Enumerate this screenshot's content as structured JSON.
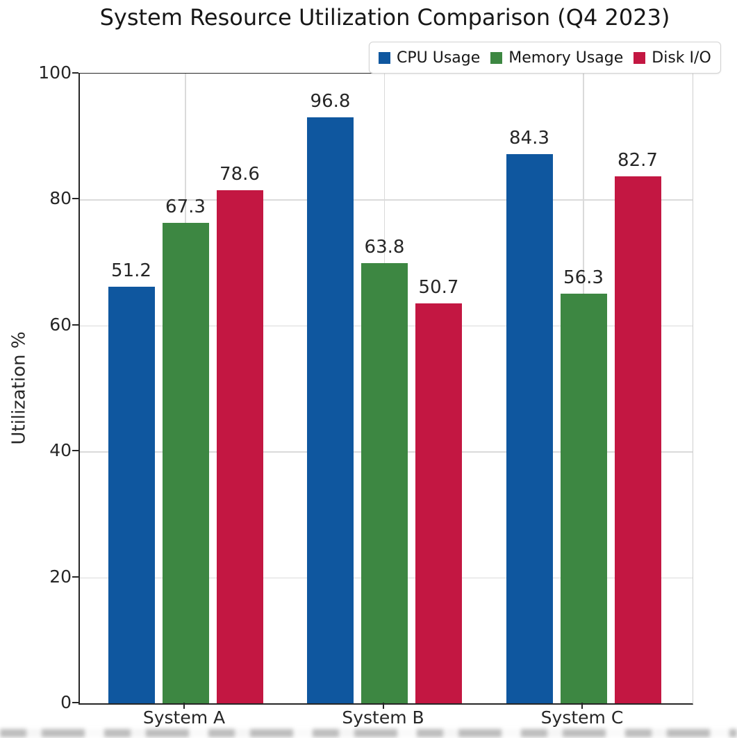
{
  "figure": {
    "background": "#ffffff",
    "text_color": "#262626",
    "gridline_color": "#dadada"
  },
  "chart_data": {
    "type": "bar",
    "title": "System Resource Utilization Comparison (Q4 2023)",
    "ylabel": "Utilization %",
    "xlabel": "",
    "categories": [
      "System A",
      "System B",
      "System C"
    ],
    "series": [
      {
        "name": "CPU Usage",
        "color": "#0F579F",
        "values": [
          51.2,
          96.8,
          84.3
        ],
        "apparent_bar_heights": [
          66.2,
          93.1,
          87.2
        ]
      },
      {
        "name": "Memory Usage",
        "color": "#3D8742",
        "values": [
          67.3,
          63.8,
          56.3
        ],
        "apparent_bar_heights": [
          76.3,
          69.9,
          65.0
        ]
      },
      {
        "name": "Disk I/O",
        "color": "#C31742",
        "values": [
          78.6,
          50.7,
          82.7
        ],
        "apparent_bar_heights": [
          81.5,
          63.5,
          83.7
        ]
      }
    ],
    "ylim": [
      0,
      100
    ],
    "yticks": [
      0,
      20,
      40,
      60,
      80,
      100
    ],
    "grid": true,
    "legend": {
      "position": "upper right",
      "entries": [
        "CPU Usage",
        "Memory Usage",
        "Disk I/O"
      ]
    }
  }
}
